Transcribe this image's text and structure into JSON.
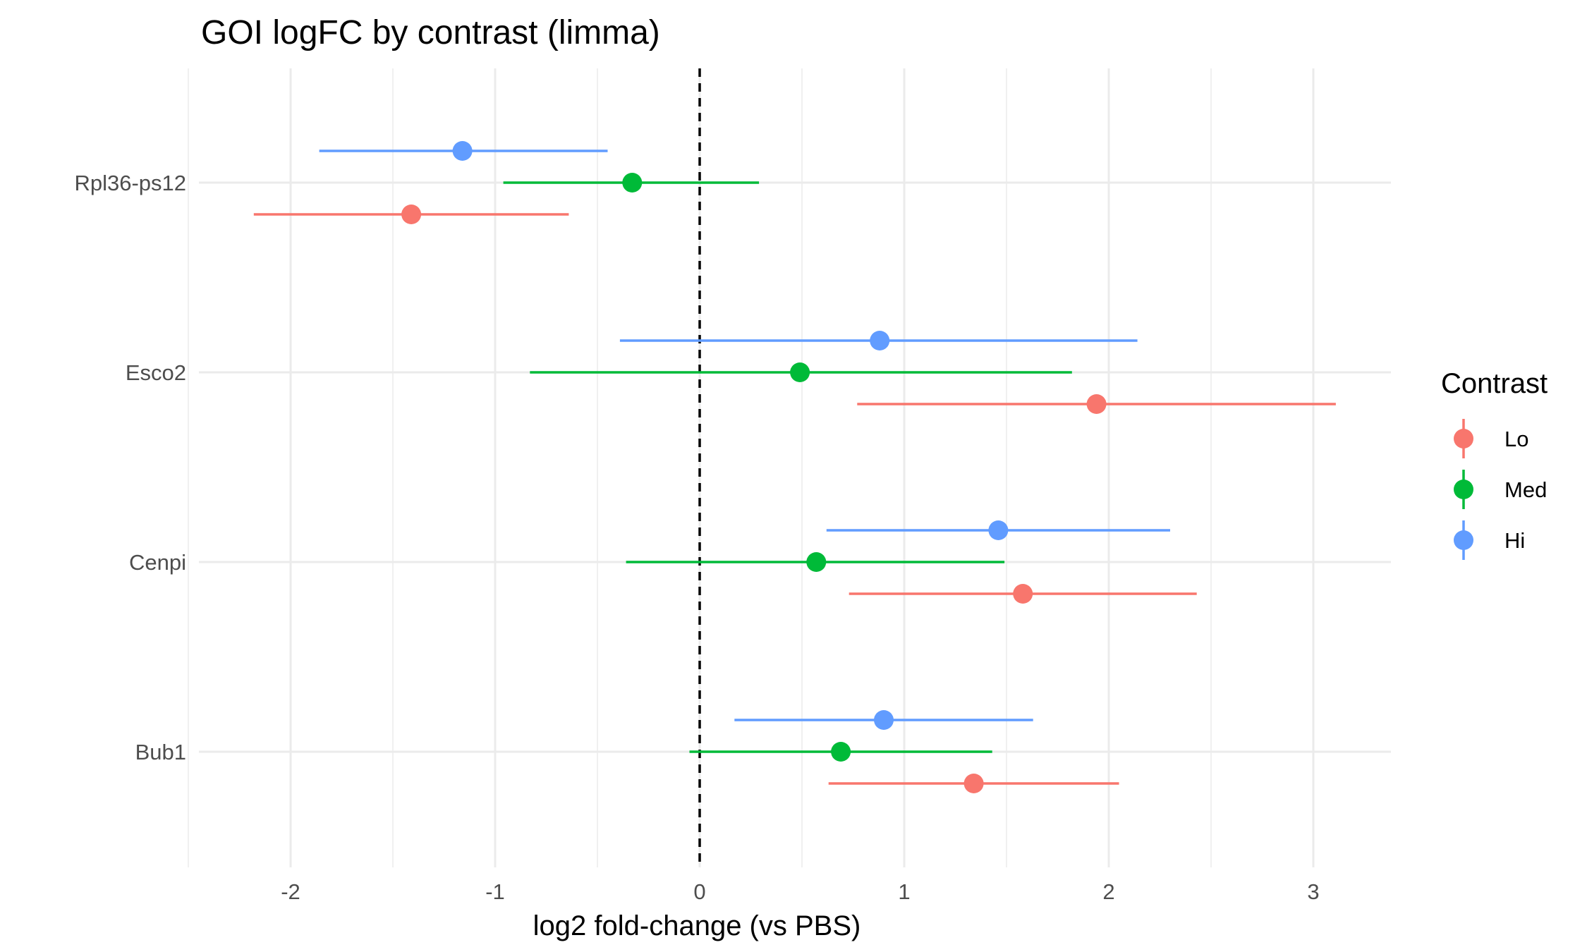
{
  "chart_data": {
    "type": "scatter",
    "subtype": "dot-and-whisker",
    "title": "GOI logFC by contrast (limma)",
    "xlabel": "log2 fold-change (vs PBS)",
    "ylabel": "",
    "xlim": [
      -2.5,
      3.35
    ],
    "x_ticks": [
      -2,
      -1,
      0,
      1,
      2,
      3
    ],
    "x_tick_labels": [
      "-2",
      "-1",
      "0",
      "1",
      "2",
      "3"
    ],
    "categories": [
      "Rpl36-ps12",
      "Esco2",
      "Cenpi",
      "Bub1"
    ],
    "reference_line": {
      "x": 0,
      "style": "dashed"
    },
    "grid": true,
    "legend": {
      "title": "Contrast",
      "position": "right"
    },
    "series": [
      {
        "name": "Lo",
        "color": "#F8766D",
        "points": [
          {
            "gene": "Rpl36-ps12",
            "x": -1.41,
            "lo": -2.18,
            "hi": -0.64
          },
          {
            "gene": "Esco2",
            "x": 1.94,
            "lo": 0.77,
            "hi": 3.11
          },
          {
            "gene": "Cenpi",
            "x": 1.58,
            "lo": 0.73,
            "hi": 2.43
          },
          {
            "gene": "Bub1",
            "x": 1.34,
            "lo": 0.63,
            "hi": 2.05
          }
        ]
      },
      {
        "name": "Med",
        "color": "#00BA38",
        "points": [
          {
            "gene": "Rpl36-ps12",
            "x": -0.33,
            "lo": -0.96,
            "hi": 0.29
          },
          {
            "gene": "Esco2",
            "x": 0.49,
            "lo": -0.83,
            "hi": 1.82
          },
          {
            "gene": "Cenpi",
            "x": 0.57,
            "lo": -0.36,
            "hi": 1.49
          },
          {
            "gene": "Bub1",
            "x": 0.69,
            "lo": -0.05,
            "hi": 1.43
          }
        ]
      },
      {
        "name": "Hi",
        "color": "#619CFF",
        "points": [
          {
            "gene": "Rpl36-ps12",
            "x": -1.16,
            "lo": -1.86,
            "hi": -0.45
          },
          {
            "gene": "Esco2",
            "x": 0.88,
            "lo": -0.39,
            "hi": 2.14
          },
          {
            "gene": "Cenpi",
            "x": 1.46,
            "lo": 0.62,
            "hi": 2.3
          },
          {
            "gene": "Bub1",
            "x": 0.9,
            "lo": 0.17,
            "hi": 1.63
          }
        ]
      }
    ]
  }
}
